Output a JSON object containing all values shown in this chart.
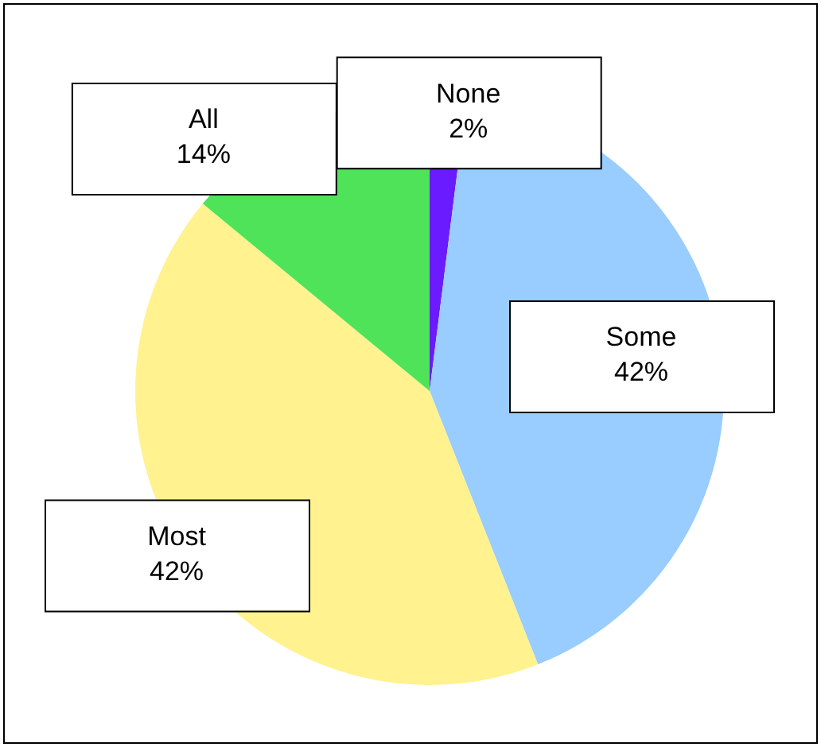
{
  "chart_data": {
    "type": "pie",
    "categories": [
      "None",
      "Some",
      "Most",
      "All"
    ],
    "values": [
      2,
      42,
      42,
      14
    ],
    "value_labels": [
      "2%",
      "42%",
      "42%",
      "14%"
    ],
    "colors": [
      "#6a1bff",
      "#99ccff",
      "#fff28f",
      "#4fe35a"
    ],
    "legend": false
  }
}
